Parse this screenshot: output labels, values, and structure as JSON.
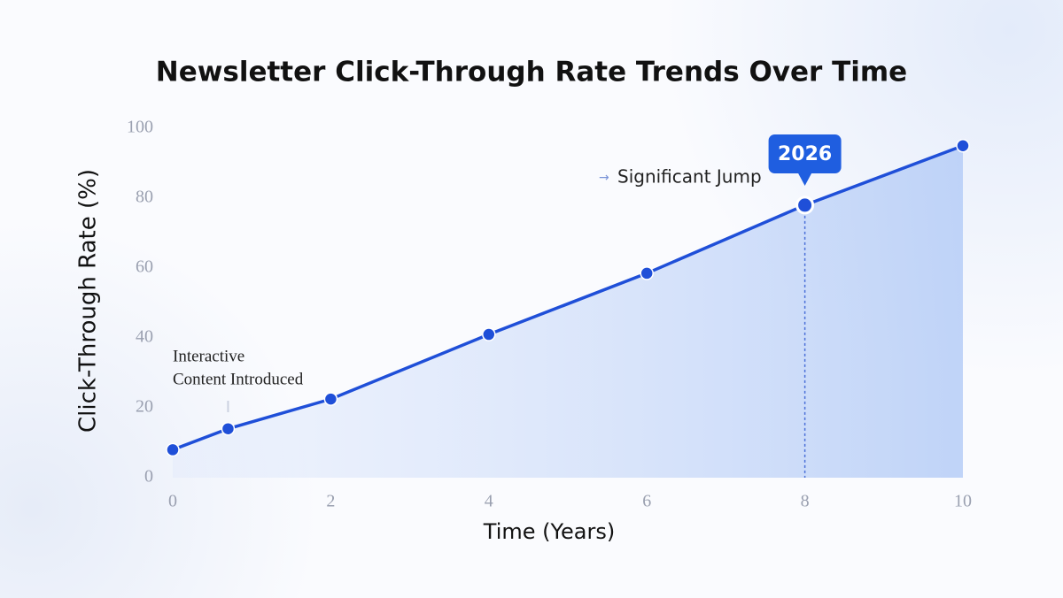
{
  "chart_data": {
    "type": "line",
    "title": "Newsletter Click-Through Rate Trends Over Time",
    "x_label": "Time (Years)",
    "y_label": "Click-Through Rate (%)",
    "x": [
      0,
      0.7,
      2,
      4,
      6,
      8,
      10
    ],
    "values": [
      8,
      14,
      22.5,
      41,
      58.5,
      78,
      95
    ],
    "color": "#1f4fd8",
    "xlim": [
      0,
      10
    ],
    "xticks": [
      0,
      2,
      4,
      6,
      8,
      10
    ],
    "ylim": [
      0,
      100
    ],
    "yticks": [
      0,
      20,
      40,
      60,
      80,
      100
    ],
    "grid": false,
    "annotations": [
      "Interactive",
      "Content Introduced",
      "Significant Jump",
      "2026"
    ]
  }
}
